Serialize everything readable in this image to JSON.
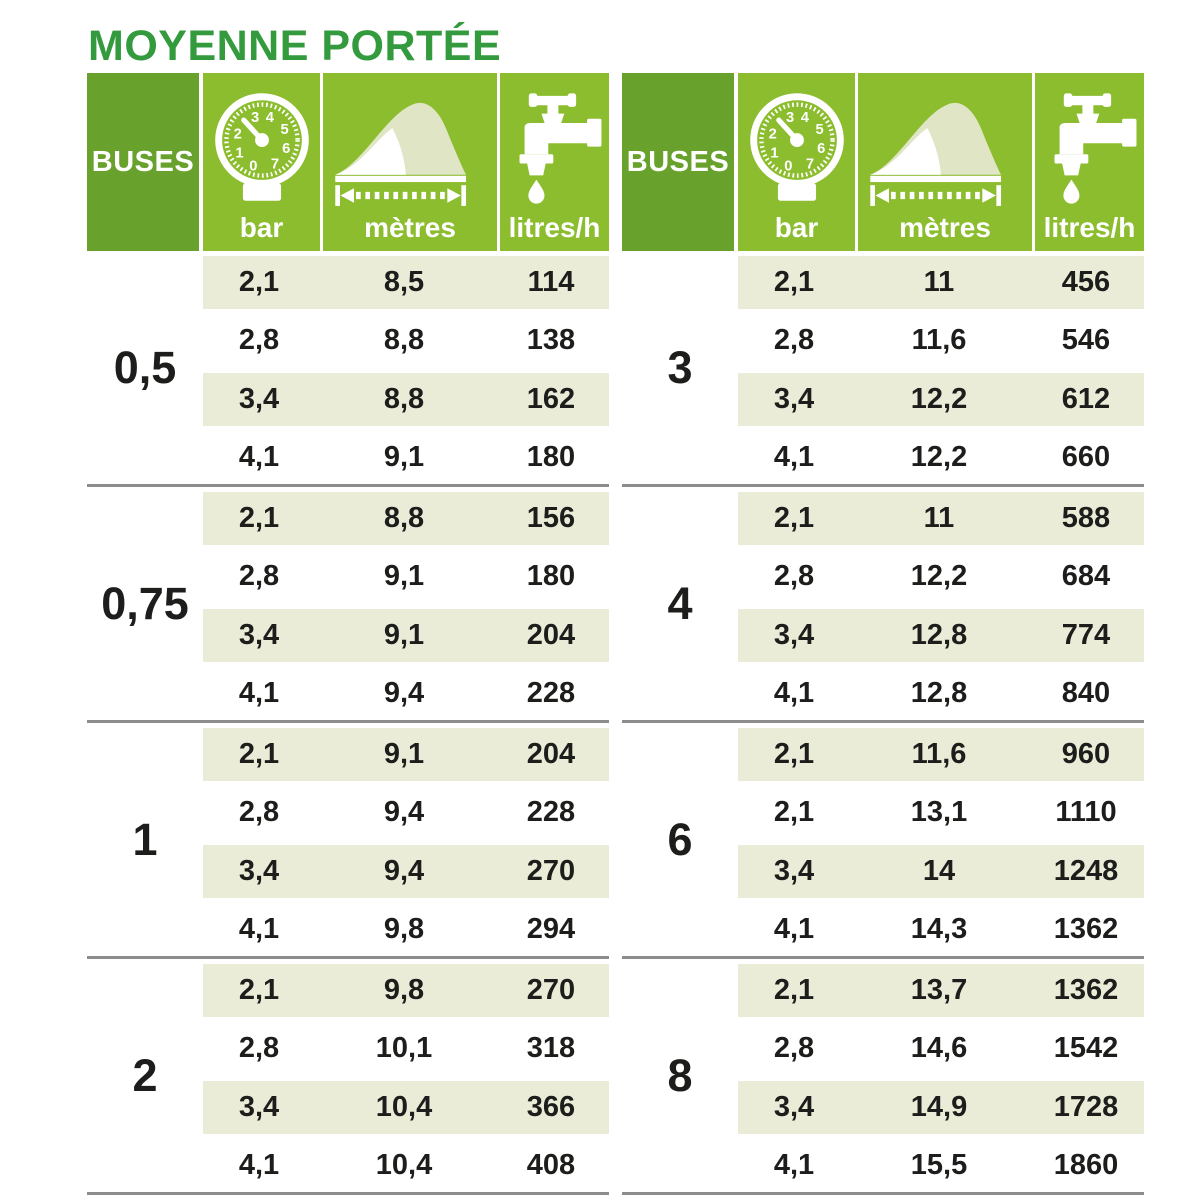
{
  "title": "MOYENNE PORTÉE",
  "colors": {
    "title_green": "#339a3d",
    "header_dark_green": "#68a22c",
    "header_light_green": "#8cbd2e",
    "row_beige": "#eaecd8",
    "separator_gray": "#8d8d8d",
    "value_text": "#1d1d1b",
    "header_text": "#ffffff",
    "icon_pale_fill": "#dfe5c5"
  },
  "header": {
    "buses_label": "BUSES",
    "columns": [
      {
        "icon": "pressure-gauge-icon",
        "label": "bar"
      },
      {
        "icon": "spray-range-icon",
        "label": "mètres"
      },
      {
        "icon": "water-tap-icon",
        "label": "litres/h"
      }
    ]
  },
  "gauge_dial_numbers": [
    "0",
    "1",
    "2",
    "3",
    "4",
    "5",
    "6",
    "7"
  ],
  "chart_data": {
    "type": "table",
    "title": "MOYENNE PORTÉE",
    "columns": [
      "BUSES",
      "bar",
      "mètres",
      "litres/h"
    ],
    "tables": [
      {
        "sections": [
          {
            "buses": "0,5",
            "rows": [
              [
                "2,1",
                "8,5",
                "114"
              ],
              [
                "2,8",
                "8,8",
                "138"
              ],
              [
                "3,4",
                "8,8",
                "162"
              ],
              [
                "4,1",
                "9,1",
                "180"
              ]
            ]
          },
          {
            "buses": "0,75",
            "rows": [
              [
                "2,1",
                "8,8",
                "156"
              ],
              [
                "2,8",
                "9,1",
                "180"
              ],
              [
                "3,4",
                "9,1",
                "204"
              ],
              [
                "4,1",
                "9,4",
                "228"
              ]
            ]
          },
          {
            "buses": "1",
            "rows": [
              [
                "2,1",
                "9,1",
                "204"
              ],
              [
                "2,8",
                "9,4",
                "228"
              ],
              [
                "3,4",
                "9,4",
                "270"
              ],
              [
                "4,1",
                "9,8",
                "294"
              ]
            ]
          },
          {
            "buses": "2",
            "rows": [
              [
                "2,1",
                "9,8",
                "270"
              ],
              [
                "2,8",
                "10,1",
                "318"
              ],
              [
                "3,4",
                "10,4",
                "366"
              ],
              [
                "4,1",
                "10,4",
                "408"
              ]
            ]
          }
        ]
      },
      {
        "sections": [
          {
            "buses": "3",
            "rows": [
              [
                "2,1",
                "11",
                "456"
              ],
              [
                "2,8",
                "11,6",
                "546"
              ],
              [
                "3,4",
                "12,2",
                "612"
              ],
              [
                "4,1",
                "12,2",
                "660"
              ]
            ]
          },
          {
            "buses": "4",
            "rows": [
              [
                "2,1",
                "11",
                "588"
              ],
              [
                "2,8",
                "12,2",
                "684"
              ],
              [
                "3,4",
                "12,8",
                "774"
              ],
              [
                "4,1",
                "12,8",
                "840"
              ]
            ]
          },
          {
            "buses": "6",
            "rows": [
              [
                "2,1",
                "11,6",
                "960"
              ],
              [
                "2,1",
                "13,1",
                "1110"
              ],
              [
                "3,4",
                "14",
                "1248"
              ],
              [
                "4,1",
                "14,3",
                "1362"
              ]
            ]
          },
          {
            "buses": "8",
            "rows": [
              [
                "2,1",
                "13,7",
                "1362"
              ],
              [
                "2,8",
                "14,6",
                "1542"
              ],
              [
                "3,4",
                "14,9",
                "1728"
              ],
              [
                "4,1",
                "15,5",
                "1860"
              ]
            ]
          }
        ]
      }
    ]
  }
}
